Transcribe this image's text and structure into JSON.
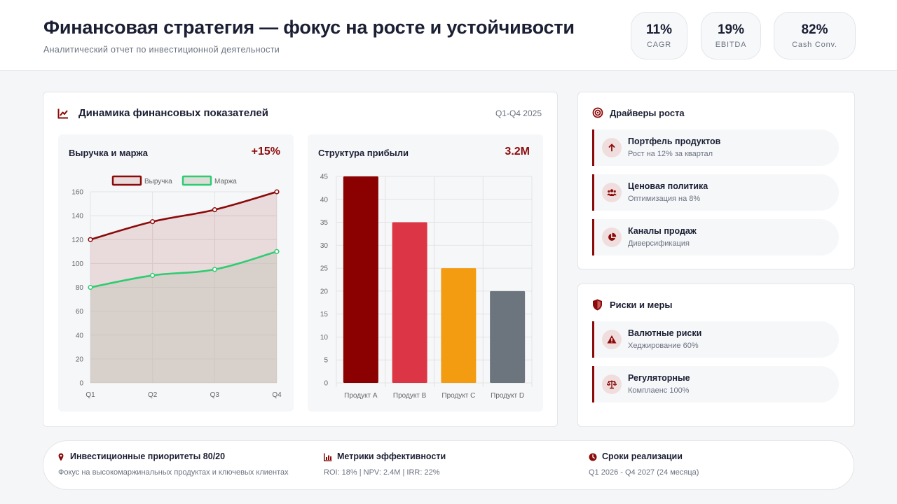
{
  "header": {
    "title": "Финансовая стратегия — фокус на росте и устойчивости",
    "subtitle": "Аналитический отчет по инвестиционной деятельности",
    "kpis": [
      {
        "value": "11%",
        "label": "CAGR"
      },
      {
        "value": "19%",
        "label": "EBITDA"
      },
      {
        "value": "82%",
        "label": "Cash Conv."
      }
    ]
  },
  "dynamics": {
    "title": "Динамика финансовых показателей",
    "period": "Q1-Q4 2025",
    "icon": "chart-line-icon",
    "accent": "#8b0a0a"
  },
  "revenue_panel": {
    "title": "Выручка и маржа",
    "value": "+15%"
  },
  "profit_panel": {
    "title": "Структура прибыли",
    "value": "3.2M"
  },
  "chart_data": [
    {
      "type": "line",
      "title": "",
      "x": [
        "Q1",
        "Q2",
        "Q3",
        "Q4"
      ],
      "series": [
        {
          "name": "Выручка",
          "values": [
            120,
            135,
            145,
            160
          ],
          "color": "#8b0a0a",
          "fill": "rgba(139,10,10,0.12)"
        },
        {
          "name": "Маржа",
          "values": [
            80,
            90,
            95,
            110
          ],
          "color": "#2ecc71",
          "fill": "rgba(200,200,190,0.55)"
        }
      ],
      "yticks": [
        0,
        20,
        40,
        60,
        80,
        100,
        120,
        140,
        160
      ],
      "ylim": [
        0,
        160
      ],
      "legend": "top-center",
      "grid": true
    },
    {
      "type": "bar",
      "title": "",
      "categories": [
        "Продукт A",
        "Продукт B",
        "Продукт C",
        "Продукт D"
      ],
      "values": [
        45,
        35,
        25,
        20
      ],
      "colors": [
        "#8b0000",
        "#dc3545",
        "#f39c12",
        "#6c757d"
      ],
      "yticks": [
        0,
        5,
        10,
        15,
        20,
        25,
        30,
        35,
        40,
        45
      ],
      "ylim": [
        0,
        45
      ],
      "grid": true
    }
  ],
  "drivers": {
    "title": "Драйверы роста",
    "icon": "target-icon",
    "items": [
      {
        "title": "Портфель продуктов",
        "sub": "Рост на 12% за квартал",
        "icon": "arrow-up-icon"
      },
      {
        "title": "Ценовая политика",
        "sub": "Оптимизация на 8%",
        "icon": "users-icon"
      },
      {
        "title": "Каналы продаж",
        "sub": "Диверсификация",
        "icon": "pie-chart-icon"
      }
    ]
  },
  "risks": {
    "title": "Риски и меры",
    "icon": "shield-icon",
    "items": [
      {
        "title": "Валютные риски",
        "sub": "Хеджирование 60%",
        "icon": "warning-icon"
      },
      {
        "title": "Регуляторные",
        "sub": "Комплаенс 100%",
        "icon": "scales-icon"
      }
    ]
  },
  "footer": {
    "priorities": {
      "title": "Инвестиционные приоритеты 80/20",
      "desc": "Фокус на высокомаржинальных продуктах и ключевых клиентах",
      "icon": "pin-icon"
    },
    "metrics": {
      "title": "Метрики эффективности",
      "desc": "ROI: 18% | NPV: 2.4M | IRR: 22%",
      "icon": "bar-chart-icon"
    },
    "timeline": {
      "title": "Сроки реализации",
      "desc": "Q1 2026 - Q4 2027 (24 месяца)",
      "icon": "clock-icon"
    }
  }
}
